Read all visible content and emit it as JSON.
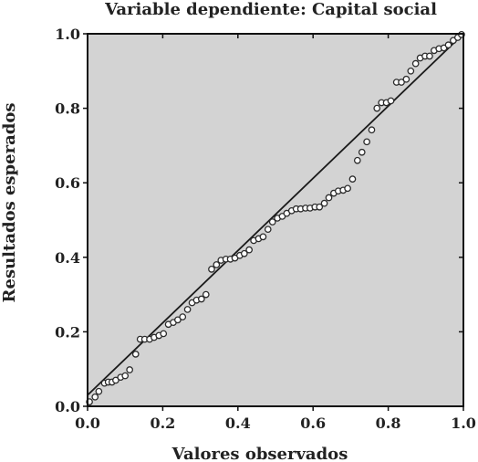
{
  "chart_data": {
    "type": "scatter",
    "title": "Variable dependiente: Capital social",
    "xlabel": "Valores observados",
    "ylabel": "Resultados esperados",
    "xlim": [
      0.0,
      1.0
    ],
    "ylim": [
      0.0,
      1.0
    ],
    "xticks": [
      "0.0",
      "0.2",
      "0.4",
      "0.6",
      "0.8",
      "1.0"
    ],
    "yticks": [
      "0.0",
      "0.2",
      "0.4",
      "0.6",
      "0.8",
      "1.0"
    ],
    "reference_line": {
      "from": [
        0.0,
        0.03
      ],
      "to": [
        1.0,
        1.0
      ]
    },
    "grid": false,
    "legend": "none",
    "colors": {
      "plot_background": "#d3d3d3",
      "marker_edge": "#2b2b2b",
      "marker_fill": "#ffffff",
      "line": "#1a1a1a"
    },
    "points": [
      [
        0.005,
        0.012
      ],
      [
        0.02,
        0.025
      ],
      [
        0.03,
        0.04
      ],
      [
        0.045,
        0.062
      ],
      [
        0.055,
        0.065
      ],
      [
        0.065,
        0.065
      ],
      [
        0.075,
        0.07
      ],
      [
        0.088,
        0.078
      ],
      [
        0.1,
        0.082
      ],
      [
        0.112,
        0.098
      ],
      [
        0.128,
        0.14
      ],
      [
        0.14,
        0.18
      ],
      [
        0.152,
        0.18
      ],
      [
        0.165,
        0.18
      ],
      [
        0.177,
        0.185
      ],
      [
        0.19,
        0.19
      ],
      [
        0.202,
        0.195
      ],
      [
        0.215,
        0.22
      ],
      [
        0.228,
        0.225
      ],
      [
        0.24,
        0.232
      ],
      [
        0.253,
        0.24
      ],
      [
        0.266,
        0.26
      ],
      [
        0.278,
        0.278
      ],
      [
        0.29,
        0.285
      ],
      [
        0.303,
        0.288
      ],
      [
        0.315,
        0.3
      ],
      [
        0.33,
        0.368
      ],
      [
        0.343,
        0.38
      ],
      [
        0.355,
        0.392
      ],
      [
        0.368,
        0.395
      ],
      [
        0.38,
        0.395
      ],
      [
        0.392,
        0.398
      ],
      [
        0.405,
        0.405
      ],
      [
        0.417,
        0.41
      ],
      [
        0.43,
        0.42
      ],
      [
        0.442,
        0.445
      ],
      [
        0.455,
        0.45
      ],
      [
        0.467,
        0.455
      ],
      [
        0.48,
        0.475
      ],
      [
        0.492,
        0.495
      ],
      [
        0.505,
        0.505
      ],
      [
        0.518,
        0.51
      ],
      [
        0.53,
        0.518
      ],
      [
        0.543,
        0.525
      ],
      [
        0.555,
        0.53
      ],
      [
        0.567,
        0.53
      ],
      [
        0.58,
        0.532
      ],
      [
        0.592,
        0.532
      ],
      [
        0.605,
        0.535
      ],
      [
        0.617,
        0.535
      ],
      [
        0.63,
        0.545
      ],
      [
        0.642,
        0.56
      ],
      [
        0.655,
        0.572
      ],
      [
        0.667,
        0.578
      ],
      [
        0.68,
        0.58
      ],
      [
        0.692,
        0.585
      ],
      [
        0.705,
        0.61
      ],
      [
        0.718,
        0.66
      ],
      [
        0.73,
        0.682
      ],
      [
        0.743,
        0.71
      ],
      [
        0.756,
        0.742
      ],
      [
        0.77,
        0.8
      ],
      [
        0.782,
        0.815
      ],
      [
        0.795,
        0.815
      ],
      [
        0.807,
        0.82
      ],
      [
        0.822,
        0.87
      ],
      [
        0.835,
        0.87
      ],
      [
        0.848,
        0.878
      ],
      [
        0.86,
        0.9
      ],
      [
        0.873,
        0.92
      ],
      [
        0.885,
        0.935
      ],
      [
        0.898,
        0.94
      ],
      [
        0.91,
        0.94
      ],
      [
        0.922,
        0.955
      ],
      [
        0.935,
        0.96
      ],
      [
        0.948,
        0.962
      ],
      [
        0.96,
        0.97
      ],
      [
        0.973,
        0.982
      ],
      [
        0.985,
        0.99
      ],
      [
        0.995,
        0.998
      ]
    ]
  }
}
